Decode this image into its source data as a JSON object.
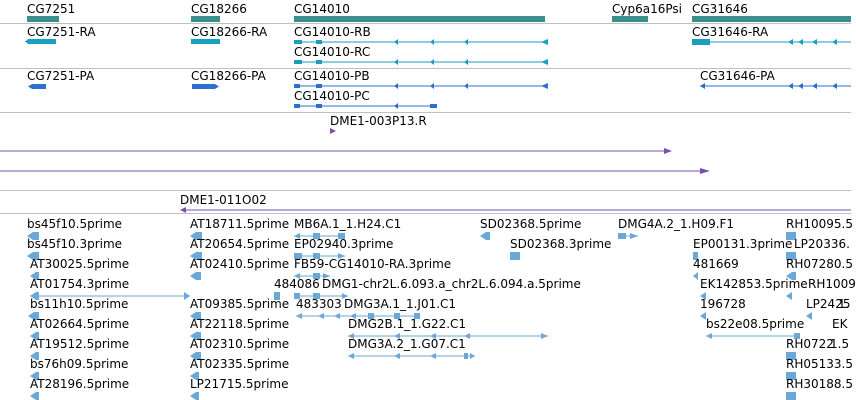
{
  "colors": {
    "gene": "#3a8f8c",
    "mrna": "#1a9ec0",
    "protein": "#2f6fd0",
    "transposon": "#7a4fb0",
    "est": "#6aa8d8",
    "divider": "#c0c0c0"
  },
  "tracks": {
    "genes": [
      "CG7251",
      "CG18266",
      "CG14010",
      "Cyp6a16Psi",
      "CG31646"
    ],
    "transcripts": [
      "CG7251-RA",
      "CG18266-RA",
      "CG14010-RB",
      "CG14010-RC",
      "CG31646-RA"
    ],
    "proteins": [
      "CG7251-PA",
      "CG18266-PA",
      "CG14010-PB",
      "CG14010-PC",
      "CG31646-PA"
    ],
    "inserts": [
      "DME1-003P13.R",
      "DME1-011O02"
    ],
    "ests": [
      "bs45f10.5prime",
      "AT18711.5prime",
      "MB6A.1_1.H24.C1",
      "SD02368.5prime",
      "DMG4A.2_1.H09.F1",
      "RH10095.5",
      "bs45f10.3prime",
      "AT20654.5prime",
      "EP02940.3prime",
      "SD02368.3prime",
      "EP00131.3prime",
      "LP20336.",
      "AT30025.5prime",
      "AT02410.5prime",
      "FB59-CG14010-RA.3prime",
      "481669",
      "RH07280.5",
      "AT01754.3prime",
      "484086",
      "DMG1-chr2L.6.093.a_chr2L.6.094.a.5prime",
      "EK142853.5prime",
      "RH1009",
      "bs11h10.5prime",
      "AT09385.5prime",
      "483303",
      "DMG3A.1_1.J01.C1",
      "196728",
      "LP2425",
      "1.",
      "AT02664.5prime",
      "AT22118.5prime",
      "DMG2B.1_1.G22.C1",
      "bs22e08.5prime",
      "EK",
      "AT19512.5prime",
      "AT02310.5prime",
      "DMG3A.2_1.G07.C1",
      "RH0722",
      "1.5",
      "bs76h09.5prime",
      "AT02335.5prime",
      "RH05133.5",
      "AT28196.5prime",
      "LP21715.5prime",
      "RH30188.5"
    ]
  }
}
